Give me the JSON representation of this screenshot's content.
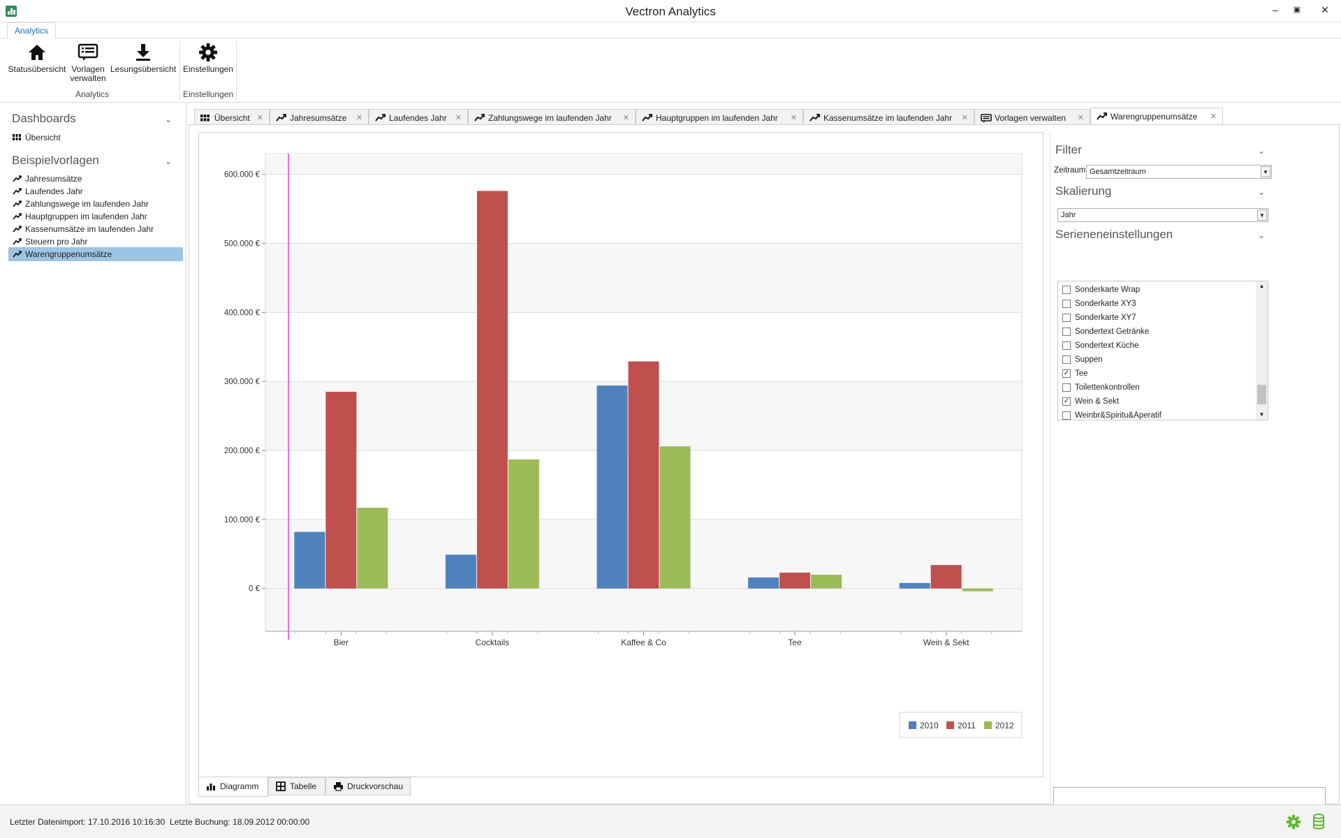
{
  "window": {
    "title": "Vectron Analytics",
    "minimize": "–",
    "restore": "▣",
    "close": "✕"
  },
  "ribbon": {
    "tab": "Analytics",
    "buttons": [
      {
        "label": "Statusübersicht",
        "icon": "home-icon"
      },
      {
        "label": "Vorlagen verwalten",
        "icon": "template-list-icon"
      },
      {
        "label": "Lesungsübersicht",
        "icon": "download-icon"
      },
      {
        "label": "Einstellungen",
        "icon": "gear-icon"
      }
    ],
    "groups": [
      "Analytics",
      "Einstellungen"
    ]
  },
  "sidebar": {
    "dashboards_title": "Dashboards",
    "dashboards": [
      {
        "label": "Übersicht",
        "icon": "grid-icon"
      }
    ],
    "templates_title": "Beispielvorlagen",
    "templates": [
      {
        "label": "Jahresumsätze"
      },
      {
        "label": "Laufendes Jahr"
      },
      {
        "label": "Zahlungswege im laufenden Jahr"
      },
      {
        "label": "Hauptgruppen im laufenden Jahr"
      },
      {
        "label": "Kassenumsätze im laufenden Jahr"
      },
      {
        "label": "Steuern pro Jahr"
      },
      {
        "label": "Warengruppenumsätze",
        "selected": true
      }
    ]
  },
  "doc_tabs": [
    {
      "label": "Übersicht",
      "icon": "grid-icon"
    },
    {
      "label": "Jahresumsätze",
      "icon": "trend-icon"
    },
    {
      "label": "Laufendes Jahr",
      "icon": "trend-icon"
    },
    {
      "label": "Zahlungswege im laufenden Jahr",
      "icon": "trend-icon"
    },
    {
      "label": "Hauptgruppen im laufenden Jahr",
      "icon": "trend-icon"
    },
    {
      "label": "Kassenumsätze im laufenden Jahr",
      "icon": "trend-icon"
    },
    {
      "label": "Vorlagen verwalten",
      "icon": "template-list-icon"
    },
    {
      "label": "Warengruppenumsätze",
      "icon": "trend-icon",
      "active": true
    }
  ],
  "chart_data": {
    "type": "bar",
    "categories": [
      "Bier",
      "Cocktails",
      "Kaffee & Co",
      "Tee",
      "Wein & Sekt"
    ],
    "series": [
      {
        "name": "2010",
        "color": "#4f81bd",
        "values": [
          82000,
          49000,
          294000,
          16000,
          8000
        ]
      },
      {
        "name": "2011",
        "color": "#c0504d",
        "values": [
          285000,
          576000,
          329000,
          23000,
          34000
        ]
      },
      {
        "name": "2012",
        "color": "#9bbb59",
        "values": [
          117000,
          187000,
          206000,
          20000,
          -4000
        ]
      }
    ],
    "ylim": [
      -62000,
      630000
    ],
    "yticks": [
      0,
      100000,
      200000,
      300000,
      400000,
      500000,
      600000
    ],
    "ytick_labels": [
      "0 €",
      "100.000 €",
      "200.000 €",
      "300.000 €",
      "400.000 €",
      "500.000 €",
      "600.000 €"
    ],
    "grid": true,
    "legend": "bottom-right",
    "xlabel": "",
    "ylabel": ""
  },
  "view_tabs": [
    {
      "label": "Diagramm",
      "icon": "bar-chart-icon",
      "active": true
    },
    {
      "label": "Tabelle",
      "icon": "table-icon"
    },
    {
      "label": "Druckvorschau",
      "icon": "printer-icon"
    }
  ],
  "filter": {
    "title": "Filter",
    "zeitraum_label": "Zeitraum",
    "zeitraum_value": "Gesamtzeitraum",
    "scaling_title": "Skalierung",
    "scaling_value": "Jahr",
    "series_title": "Serieneneinstellungen",
    "series_items": [
      {
        "label": "Sonderkarte Wrap",
        "checked": false
      },
      {
        "label": "Sonderkarte XY3",
        "checked": false
      },
      {
        "label": "Sonderkarte XY7",
        "checked": false
      },
      {
        "label": "Sondertext Getränke",
        "checked": false
      },
      {
        "label": "Sondertext Küche",
        "checked": false
      },
      {
        "label": "Suppen",
        "checked": false
      },
      {
        "label": "Tee",
        "checked": true
      },
      {
        "label": "Toilettenkontrollen",
        "checked": false
      },
      {
        "label": "Wein & Sekt",
        "checked": true
      },
      {
        "label": "Weinbr&Spiritu&Aperatif",
        "checked": false
      }
    ]
  },
  "status": {
    "import": "Letzter Datenimport: 17.10.2016 10:16:30",
    "booking": "Letzte Buchung: 18.09.2012 00:00:00"
  },
  "colors": {
    "accent": "#2a6ebb",
    "selection": "#9cc4e4",
    "status_icons": "#5cb82e",
    "cursor_line": "#e040e0"
  }
}
